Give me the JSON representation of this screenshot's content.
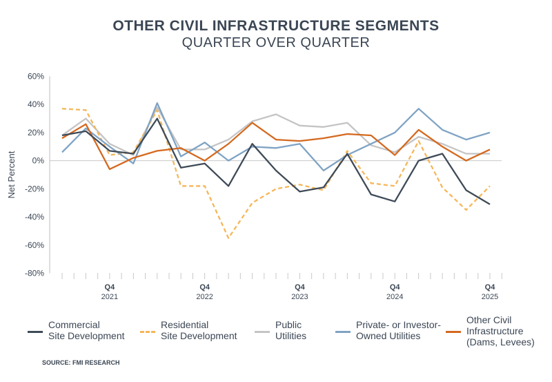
{
  "title": "OTHER CIVIL INFRASTRUCTURE SEGMENTS",
  "subtitle": "QUARTER OVER QUARTER",
  "source": "SOURCE: FMI RESEARCH",
  "chart_data": {
    "type": "line",
    "title": "OTHER CIVIL INFRASTRUCTURE SEGMENTS",
    "subtitle": "QUARTER OVER QUARTER",
    "ylabel": "Net Percent",
    "xlabel": "",
    "ylim": [
      -80,
      60
    ],
    "yticks": [
      60,
      40,
      20,
      0,
      -20,
      -40,
      -60,
      -80
    ],
    "ytick_labels": [
      "60%",
      "40%",
      "20%",
      "0%",
      "-20%",
      "-40%",
      "-60%",
      "-80%"
    ],
    "categories": [
      "Q2 2021",
      "Q3 2021",
      "Q4 2021",
      "Q1 2022",
      "Q2 2022",
      "Q3 2022",
      "Q4 2022",
      "Q1 2023",
      "Q2 2023",
      "Q3 2023",
      "Q4 2023",
      "Q1 2024",
      "Q2 2024",
      "Q3 2024",
      "Q4 2024",
      "Q1 2025",
      "Q2 2025",
      "Q3 2025",
      "Q4 2025"
    ],
    "xtick_labels": [
      {
        "index": 2,
        "q": "Q4",
        "year": "2021"
      },
      {
        "index": 6,
        "q": "Q4",
        "year": "2022"
      },
      {
        "index": 10,
        "q": "Q4",
        "year": "2023"
      },
      {
        "index": 14,
        "q": "Q4",
        "year": "2024"
      },
      {
        "index": 18,
        "q": "Q4",
        "year": "2025"
      }
    ],
    "grid": false,
    "legend_position": "bottom",
    "series": [
      {
        "name": "Commercial Site Development",
        "legend_lines": [
          "Commercial",
          "Site Development"
        ],
        "color": "#3e4a57",
        "dashed": false,
        "values": [
          18,
          21,
          7,
          5,
          30,
          -5,
          -2,
          -18,
          12,
          -7,
          -22,
          -19,
          5,
          -24,
          -29,
          0,
          5,
          -21,
          -31
        ]
      },
      {
        "name": "Residential Site Development",
        "legend_lines": [
          "Residential",
          "Site Development"
        ],
        "color": "#f6b658",
        "dashed": true,
        "values": [
          37,
          36,
          4,
          6,
          36,
          -18,
          -18,
          -55,
          -30,
          -20,
          -17,
          -21,
          7,
          -16,
          -18,
          14,
          -19,
          -35,
          -18
        ]
      },
      {
        "name": "Public Utilities",
        "legend_lines": [
          "Public",
          "Utilities"
        ],
        "color": "#c4c4c4",
        "dashed": false,
        "values": [
          18,
          30,
          12,
          4,
          38,
          8,
          8,
          15,
          28,
          33,
          25,
          24,
          27,
          11,
          6,
          17,
          12,
          5,
          5
        ]
      },
      {
        "name": "Private- or Investor-Owned Utilities",
        "legend_lines": [
          "Private- or Investor-",
          "Owned Utilities"
        ],
        "color": "#7fa3c4",
        "dashed": false,
        "values": [
          6,
          23,
          10,
          -2,
          41,
          3,
          13,
          0,
          10,
          9,
          12,
          -7,
          4,
          12,
          20,
          37,
          22,
          15,
          20
        ]
      },
      {
        "name": "Other Civil Infrastructure (Dams, Levees)",
        "legend_lines": [
          "Other Civil",
          "Infrastructure",
          "(Dams, Levees)"
        ],
        "color": "#d4691f",
        "dashed": false,
        "values": [
          16,
          26,
          -6,
          2,
          7,
          9,
          0,
          12,
          27,
          15,
          14,
          16,
          19,
          18,
          4,
          22,
          10,
          0,
          8
        ]
      }
    ]
  }
}
